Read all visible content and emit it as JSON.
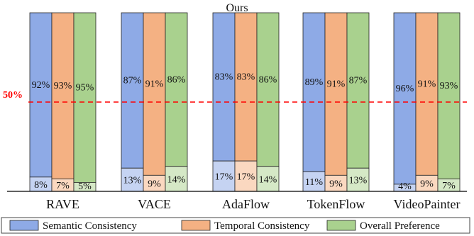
{
  "chart_data": {
    "type": "bar",
    "stacked": true,
    "top_label": "Ours",
    "reference_line": {
      "value": 50,
      "label": "50%",
      "color": "#ff0000"
    },
    "categories": [
      "RAVE",
      "VACE",
      "AdaFlow",
      "TokenFlow",
      "VideoPainter"
    ],
    "series": [
      {
        "name": "Semantic Consistency",
        "color_top": "#8eaae6",
        "color_bottom": "#c5d3f2",
        "ours": [
          92,
          87,
          83,
          89,
          96
        ],
        "baseline": [
          8,
          13,
          17,
          11,
          4
        ],
        "ours_labels": [
          "92%",
          "87%",
          "83%",
          "89%",
          "96%"
        ],
        "baseline_labels": [
          "8%",
          "13%",
          "17%",
          "11%",
          "4%"
        ]
      },
      {
        "name": "Temporal Consistency",
        "color_top": "#f4b183",
        "color_bottom": "#fad8c0",
        "ours": [
          93,
          91,
          83,
          91,
          91
        ],
        "baseline": [
          7,
          9,
          17,
          9,
          9
        ],
        "ours_labels": [
          "93%",
          "91%",
          "83%",
          "91%",
          "91%"
        ],
        "baseline_labels": [
          "7%",
          "9%",
          "17%",
          "9%",
          "9%"
        ]
      },
      {
        "name": "Overall Preference",
        "color_top": "#a9d18e",
        "color_bottom": "#d5e8c6",
        "ours": [
          95,
          86,
          86,
          87,
          93
        ],
        "baseline": [
          5,
          14,
          14,
          13,
          7
        ],
        "ours_labels": [
          "95%",
          "86%",
          "86%",
          "87%",
          "93%"
        ],
        "baseline_labels": [
          "5%",
          "14%",
          "14%",
          "13%",
          "7%"
        ]
      }
    ],
    "ylim": [
      0,
      100
    ],
    "legend_position": "bottom",
    "grid": false
  }
}
